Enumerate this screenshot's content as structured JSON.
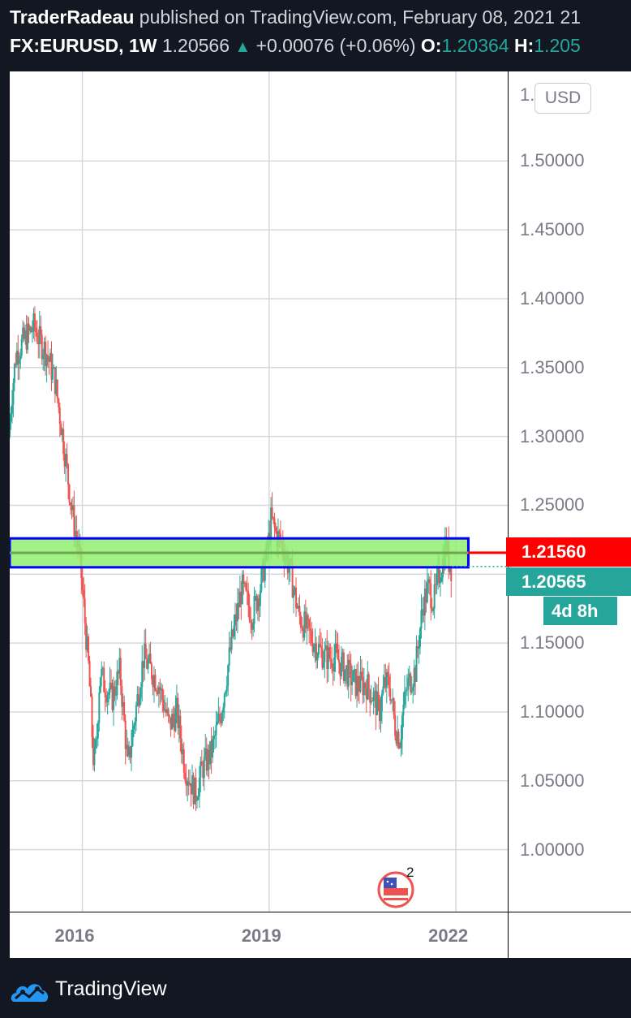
{
  "header": {
    "author": "TraderRadeau",
    "published_text": "published on TradingView.com, February 08, 2021 21",
    "symbol": "FX:EURUSD, 1W",
    "last_price": "1.20566",
    "change": "+0.00076 (+0.06%)",
    "open_label": "O:",
    "open_value": "1.20364",
    "high_label": "H:",
    "high_value": "1.205"
  },
  "price_axis": {
    "currency": "USD",
    "ticks": [
      "1.50000",
      "1.45000",
      "1.40000",
      "1.35000",
      "1.30000",
      "1.25000",
      "1.15000",
      "1.10000",
      "1.05000",
      "1.00000"
    ],
    "partial_top_tick": "1.",
    "line_price_tag": "1.21560",
    "current_price_tag": "1.20565",
    "countdown_tag": "4d 8h"
  },
  "time_axis": {
    "labels": [
      "2016",
      "2019",
      "2022"
    ]
  },
  "indicator_badge": {
    "count": "2"
  },
  "footer": {
    "brand": "TradingView"
  },
  "colors": {
    "background": "#131722",
    "up": "#26a69a",
    "down": "#ef5350",
    "zone_fill": "#90ee70",
    "zone_border": "#0000ff",
    "zone_midline": "#6aa84f",
    "line_tag": "#ff0000",
    "logo_blue": "#2196f3"
  },
  "chart_data": {
    "type": "candlestick",
    "symbol": "FX:EURUSD",
    "interval": "1W",
    "ylim": [
      0.955,
      1.565
    ],
    "xlim": [
      "2014-11-01",
      "2022-11-01"
    ],
    "y_ticks": [
      1.0,
      1.05,
      1.1,
      1.15,
      1.25,
      1.3,
      1.35,
      1.4,
      1.45,
      1.5
    ],
    "x_ticks": [
      "2016",
      "2019",
      "2022"
    ],
    "grid": true,
    "series": [
      {
        "path": [
          [
            "2014-11-01",
            1.3
          ],
          [
            "2014-11-20",
            1.33
          ],
          [
            "2014-12-15",
            1.36
          ],
          [
            "2015-02-01",
            1.37
          ],
          [
            "2015-04-01",
            1.38
          ],
          [
            "2015-05-01",
            1.37
          ],
          [
            "2015-06-15",
            1.36
          ],
          [
            "2015-08-01",
            1.34
          ],
          [
            "2015-09-15",
            1.3
          ],
          [
            "2015-10-15",
            1.27
          ],
          [
            "2015-11-15",
            1.24
          ],
          [
            "2015-12-15",
            1.22
          ],
          [
            "2016-01-01",
            1.2
          ],
          [
            "2016-02-15",
            1.13
          ],
          [
            "2016-03-15",
            1.06
          ],
          [
            "2016-04-01",
            1.08
          ],
          [
            "2016-04-20",
            1.13
          ],
          [
            "2016-05-15",
            1.12
          ],
          [
            "2016-07-01",
            1.11
          ],
          [
            "2016-08-15",
            1.13
          ],
          [
            "2016-10-01",
            1.06
          ],
          [
            "2016-11-15",
            1.1
          ],
          [
            "2017-01-01",
            1.14
          ],
          [
            "2017-02-15",
            1.13
          ],
          [
            "2017-04-01",
            1.12
          ],
          [
            "2017-06-01",
            1.09
          ],
          [
            "2017-07-15",
            1.1
          ],
          [
            "2017-09-01",
            1.06
          ],
          [
            "2017-11-01",
            1.04
          ],
          [
            "2017-12-15",
            1.06
          ],
          [
            "2018-02-01",
            1.07
          ],
          [
            "2018-04-01",
            1.1
          ],
          [
            "2018-06-01",
            1.15
          ],
          [
            "2018-08-01",
            1.19
          ],
          [
            "2018-10-01",
            1.17
          ],
          [
            "2018-11-15",
            1.19
          ],
          [
            "2019-01-01",
            1.22
          ],
          [
            "2019-01-20",
            1.24
          ],
          [
            "2019-02-15",
            1.23
          ],
          [
            "2019-04-01",
            1.22
          ],
          [
            "2019-05-15",
            1.2
          ],
          [
            "2019-07-01",
            1.17
          ],
          [
            "2019-08-15",
            1.16
          ],
          [
            "2019-10-01",
            1.15
          ],
          [
            "2019-12-01",
            1.14
          ],
          [
            "2020-02-01",
            1.14
          ],
          [
            "2020-04-01",
            1.13
          ],
          [
            "2020-06-01",
            1.12
          ],
          [
            "2020-08-01",
            1.12
          ],
          [
            "2020-09-15",
            1.11
          ],
          [
            "2020-10-15",
            1.1
          ],
          [
            "2020-11-15",
            1.12
          ],
          [
            "2020-12-15",
            1.12
          ],
          [
            "2021-01-15",
            1.09
          ],
          [
            "2021-02-15",
            1.08
          ],
          [
            "2021-03-01",
            1.1
          ],
          [
            "2021-04-01",
            1.12
          ],
          [
            "2021-05-15",
            1.13
          ],
          [
            "2021-06-01",
            1.15
          ],
          [
            "2021-07-01",
            1.18
          ],
          [
            "2021-08-01",
            1.19
          ],
          [
            "2021-09-01",
            1.18
          ],
          [
            "2021-10-01",
            1.2
          ],
          [
            "2021-10-25",
            1.21
          ],
          [
            "2021-11-10",
            1.225
          ],
          [
            "2021-11-25",
            1.21
          ],
          [
            "2021-12-10",
            1.205
          ]
        ]
      }
    ],
    "annotations": {
      "zone_top": 1.226,
      "zone_bottom": 1.205,
      "zone_mid": 1.2155,
      "zone_start": "2014-11-01",
      "zone_end": "2022-03-15",
      "horizontal_line": 1.2156,
      "current_price": 1.20565
    }
  }
}
